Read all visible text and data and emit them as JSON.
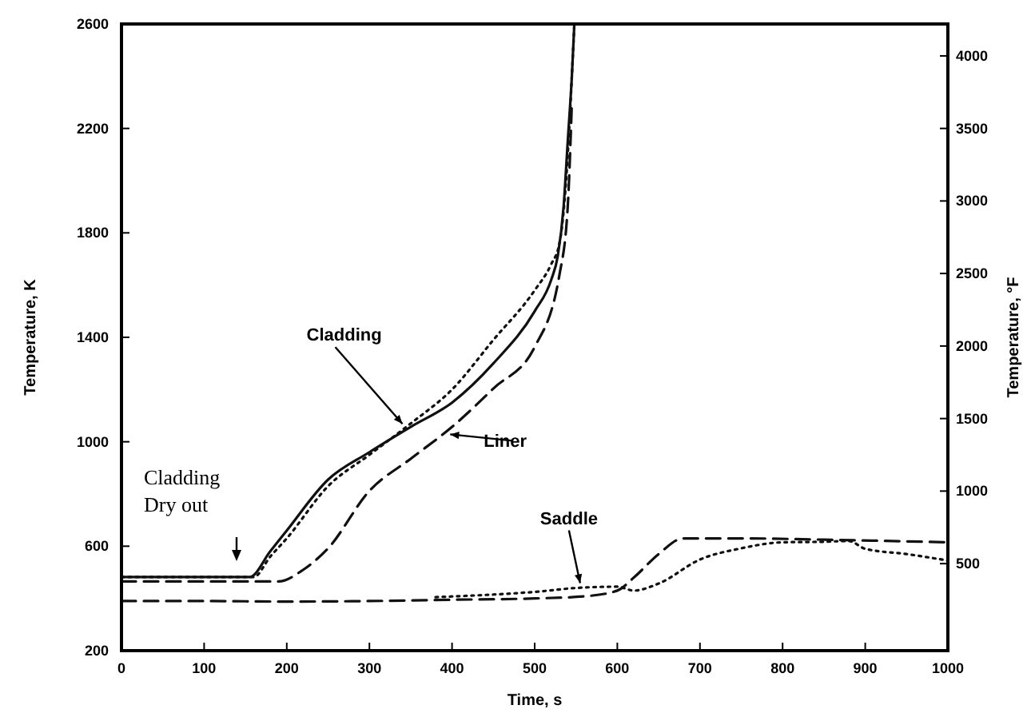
{
  "chart_data": {
    "type": "line",
    "xlabel": "Time, s",
    "ylabel": "Temperature, K",
    "y2label": "Temperature, °F",
    "xlim": [
      0,
      1000
    ],
    "xticks": [
      0,
      100,
      200,
      300,
      400,
      500,
      600,
      700,
      800,
      900,
      1000
    ],
    "ylim": [
      200,
      2600
    ],
    "yticks": [
      200,
      600,
      1000,
      1400,
      1800,
      2200,
      2600
    ],
    "y2lim": [
      -100,
      4220
    ],
    "y2ticks": [
      500,
      1000,
      1500,
      2000,
      2500,
      3000,
      3500,
      4000
    ],
    "grid": false,
    "marker": "none",
    "series": [
      {
        "color": "#111111",
        "line_style": "solid",
        "x": [
          0,
          100,
          155,
          180,
          200,
          250,
          300,
          350,
          400,
          450,
          500,
          520,
          528,
          535,
          540,
          545,
          548
        ],
        "values": [
          482,
          482,
          482,
          580,
          660,
          855,
          960,
          1057,
          1150,
          1300,
          1500,
          1620,
          1712,
          1900,
          2150,
          2400,
          2600
        ]
      },
      {
        "color": "#111111",
        "line_style": "dotted",
        "x": [
          0,
          100,
          160,
          180,
          200,
          250,
          300,
          350,
          400,
          450,
          500,
          520,
          530,
          538,
          545,
          548
        ],
        "values": [
          482,
          482,
          482,
          560,
          630,
          830,
          950,
          1070,
          1200,
          1390,
          1580,
          1680,
          1760,
          2000,
          2400,
          2600
        ]
      },
      {
        "color": "#111111",
        "line_style": "dashed",
        "x": [
          0,
          100,
          190,
          220,
          250,
          300,
          350,
          400,
          450,
          500,
          530,
          540,
          545
        ],
        "values": [
          465,
          465,
          465,
          510,
          592,
          812,
          935,
          1057,
          1204,
          1363,
          1640,
          1900,
          2300
        ]
      },
      {
        "color": "#111111",
        "line_style": "dashed",
        "x": [
          0,
          100,
          200,
          300,
          400,
          500,
          560,
          600,
          620,
          650,
          680,
          750,
          850,
          1000
        ],
        "values": [
          390,
          390,
          388,
          390,
          395,
          400,
          408,
          430,
          480,
          570,
          630,
          630,
          625,
          615
        ]
      },
      {
        "color": "#111111",
        "line_style": "dotted",
        "x": [
          380,
          450,
          500,
          550,
          600,
          620,
          650,
          700,
          750,
          800,
          850,
          880,
          900,
          950,
          1000
        ],
        "values": [
          405,
          415,
          425,
          440,
          445,
          430,
          457,
          549,
          592,
          615,
          617,
          620,
          590,
          570,
          545
        ]
      }
    ],
    "annotations": [
      {
        "text": "Cladding",
        "x": 340,
        "y": 1050
      },
      {
        "text": "Liner",
        "x": 390,
        "y": 1010
      },
      {
        "text": "Saddle",
        "x": 555,
        "y": 440
      },
      "Cladding\nDry out"
    ]
  }
}
